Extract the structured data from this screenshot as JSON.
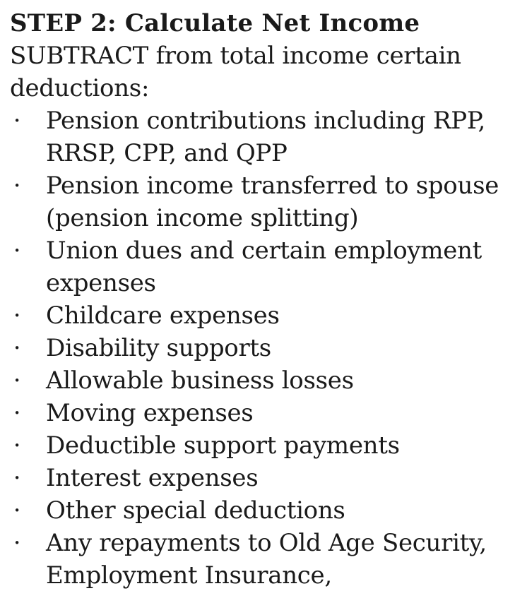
{
  "heading": "STEP 2: Calculate Net Income",
  "intro": "SUBTRACT from total income certain deductions:",
  "bullet_glyph": "·",
  "items": [
    "Pension contributions including RPP, RRSP, CPP, and QPP",
    "Pension income transferred to spouse (pension income splitting)",
    "Union dues and certain employment expenses",
    "Childcare expenses",
    "Disability supports",
    "Allowable business losses",
    "Moving expenses",
    "Deductible support payments",
    "Interest expenses",
    "Other special deductions",
    "Any repayments to Old Age Security, Employment Insurance,"
  ]
}
